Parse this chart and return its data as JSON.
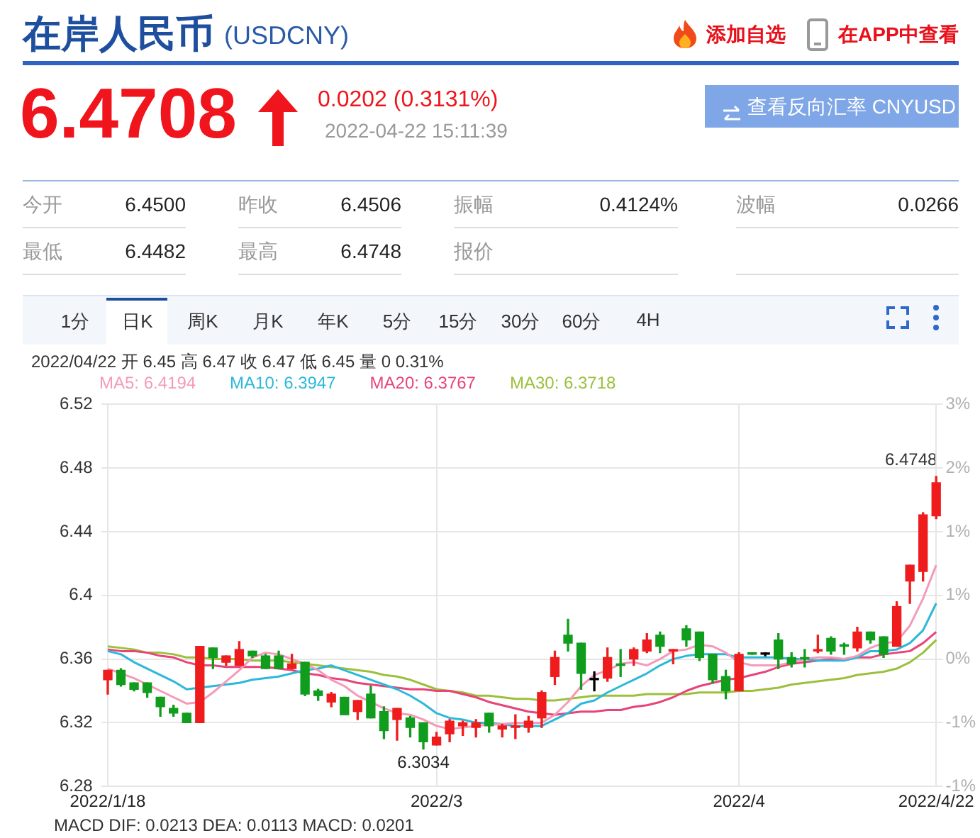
{
  "chart_data": {
    "type": "candlestick",
    "title": "在岸人民币",
    "subtitle": "(USDCNY)",
    "categories": [
      "2022/1/18",
      null,
      null,
      null,
      null,
      null,
      null,
      null,
      null,
      null,
      null,
      null,
      null,
      null,
      null,
      null,
      null,
      null,
      null,
      null,
      null,
      null,
      null,
      null,
      null,
      "2022/3",
      null,
      null,
      null,
      null,
      null,
      null,
      null,
      null,
      null,
      null,
      null,
      null,
      null,
      null,
      null,
      null,
      null,
      null,
      null,
      null,
      null,
      null,
      "2022/4",
      null,
      null,
      null,
      null,
      null,
      null,
      null,
      null,
      null,
      null,
      null,
      null,
      null,
      null,
      "2022/4/22"
    ],
    "ohlc": [
      [
        6.347,
        6.353,
        6.338,
        6.353
      ],
      [
        6.353,
        6.354,
        6.343,
        6.344
      ],
      [
        6.345,
        6.345,
        6.34,
        6.341
      ],
      [
        6.345,
        6.345,
        6.336,
        6.339
      ],
      [
        6.336,
        6.336,
        6.324,
        6.33
      ],
      [
        6.329,
        6.331,
        6.324,
        6.326
      ],
      [
        6.326,
        6.326,
        6.32,
        6.32
      ],
      [
        6.32,
        6.368,
        6.32,
        6.368
      ],
      [
        6.367,
        6.367,
        6.354,
        6.361
      ],
      [
        6.358,
        6.362,
        6.356,
        6.362
      ],
      [
        6.356,
        6.371,
        6.356,
        6.366
      ],
      [
        6.365,
        6.365,
        6.361,
        6.362
      ],
      [
        6.362,
        6.363,
        6.354,
        6.354
      ],
      [
        6.362,
        6.365,
        6.354,
        6.354
      ],
      [
        6.354,
        6.363,
        6.354,
        6.357
      ],
      [
        6.358,
        6.358,
        6.337,
        6.338
      ],
      [
        6.34,
        6.341,
        6.334,
        6.337
      ],
      [
        6.333,
        6.339,
        6.33,
        6.338
      ],
      [
        6.336,
        6.336,
        6.325,
        6.325
      ],
      [
        6.327,
        6.334,
        6.322,
        6.334
      ],
      [
        6.338,
        6.343,
        6.323,
        6.323
      ],
      [
        6.327,
        6.33,
        6.31,
        6.315
      ],
      [
        6.322,
        6.329,
        6.309,
        6.329
      ],
      [
        6.323,
        6.324,
        6.311,
        6.317
      ],
      [
        6.32,
        6.32,
        6.3034,
        6.308
      ],
      [
        6.306,
        6.314,
        6.306,
        6.311
      ],
      [
        6.313,
        6.322,
        6.308,
        6.321
      ],
      [
        6.318,
        6.321,
        6.312,
        6.32
      ],
      [
        6.317,
        6.322,
        6.311,
        6.32
      ],
      [
        6.326,
        6.326,
        6.314,
        6.318
      ],
      [
        6.316,
        6.319,
        6.311,
        6.318
      ],
      [
        6.317,
        6.325,
        6.31,
        6.318
      ],
      [
        6.317,
        6.324,
        6.314,
        6.321
      ],
      [
        6.323,
        6.34,
        6.317,
        6.339
      ],
      [
        6.349,
        6.365,
        6.344,
        6.361
      ],
      [
        6.375,
        6.385,
        6.365,
        6.37
      ],
      [
        6.37,
        6.37,
        6.341,
        6.351
      ],
      [
        6.347,
        6.352,
        6.34,
        6.347
      ],
      [
        6.348,
        6.367,
        6.346,
        6.361
      ],
      [
        6.357,
        6.366,
        6.349,
        6.356
      ],
      [
        6.36,
        6.367,
        6.356,
        6.366
      ],
      [
        6.365,
        6.376,
        6.364,
        6.372
      ],
      [
        6.375,
        6.377,
        6.364,
        6.368
      ],
      [
        6.365,
        6.366,
        6.357,
        6.366
      ],
      [
        6.379,
        6.381,
        6.368,
        6.372
      ],
      [
        6.377,
        6.377,
        6.359,
        6.361
      ],
      [
        6.363,
        6.363,
        6.345,
        6.347
      ],
      [
        6.349,
        6.353,
        6.335,
        6.34
      ],
      [
        6.34,
        6.364,
        6.34,
        6.363
      ],
      [
        6.364,
        6.364,
        6.363,
        6.363
      ],
      [
        6.363,
        6.364,
        6.362,
        6.363
      ],
      [
        6.372,
        6.376,
        6.354,
        6.36
      ],
      [
        6.361,
        6.364,
        6.355,
        6.357
      ],
      [
        6.361,
        6.366,
        6.355,
        6.36
      ],
      [
        6.365,
        6.375,
        6.364,
        6.366
      ],
      [
        6.373,
        6.374,
        6.363,
        6.365
      ],
      [
        6.369,
        6.37,
        6.363,
        6.368
      ],
      [
        6.367,
        6.38,
        6.365,
        6.377
      ],
      [
        6.377,
        6.377,
        6.37,
        6.372
      ],
      [
        6.374,
        6.374,
        6.361,
        6.363
      ],
      [
        6.368,
        6.396,
        6.368,
        6.393
      ],
      [
        6.409,
        6.419,
        6.395,
        6.419
      ],
      [
        6.415,
        6.452,
        6.409,
        6.4506
      ],
      [
        6.45,
        6.4748,
        6.4482,
        6.4708
      ]
    ],
    "colors": [
      "#ee1c1c",
      "#109c1c",
      "#109c1c",
      "#109c1c",
      "#109c1c",
      "#109c1c",
      "#109c1c",
      "#ee1c1c",
      "#109c1c",
      "#ee1c1c",
      "#ee1c1c",
      "#109c1c",
      "#109c1c",
      "#109c1c",
      "#ee1c1c",
      "#109c1c",
      "#109c1c",
      "#ee1c1c",
      "#109c1c",
      "#ee1c1c",
      "#109c1c",
      "#109c1c",
      "#ee1c1c",
      "#109c1c",
      "#109c1c",
      "#ee1c1c",
      "#ee1c1c",
      "#ee1c1c",
      "#ee1c1c",
      "#109c1c",
      "#ee1c1c",
      "#ee1c1c",
      "#ee1c1c",
      "#ee1c1c",
      "#ee1c1c",
      "#109c1c",
      "#109c1c",
      "#000000",
      "#ee1c1c",
      "#109c1c",
      "#ee1c1c",
      "#ee1c1c",
      "#109c1c",
      "#ee1c1c",
      "#109c1c",
      "#109c1c",
      "#109c1c",
      "#109c1c",
      "#ee1c1c",
      "#109c1c",
      "#000000",
      "#109c1c",
      "#109c1c",
      "#109c1c",
      "#ee1c1c",
      "#109c1c",
      "#109c1c",
      "#ee1c1c",
      "#109c1c",
      "#109c1c",
      "#ee1c1c",
      "#ee1c1c",
      "#ee1c1c",
      "#ee1c1c"
    ],
    "series": [
      {
        "name": "MA5: 6.4194",
        "type": "line",
        "color": "#f59ab8",
        "values": [
          6.354,
          6.351,
          6.348,
          6.344,
          6.34,
          6.336,
          6.332,
          6.333,
          6.339,
          6.346,
          6.353,
          6.361,
          6.364,
          6.363,
          6.36,
          6.357,
          6.353,
          6.347,
          6.343,
          6.337,
          6.333,
          6.329,
          6.326,
          6.325,
          6.322,
          6.318,
          6.316,
          6.317,
          6.318,
          6.319,
          6.319,
          6.32,
          6.32,
          6.32,
          6.325,
          6.333,
          6.343,
          6.35,
          6.353,
          6.357,
          6.358,
          6.356,
          6.36,
          6.365,
          6.366,
          6.369,
          6.368,
          6.364,
          6.358,
          6.356,
          6.356,
          6.356,
          6.358,
          6.36,
          6.361,
          6.361,
          6.36,
          6.362,
          6.367,
          6.37,
          6.371,
          6.381,
          6.398,
          6.419
        ]
      },
      {
        "name": "MA10: 6.3947",
        "type": "line",
        "color": "#2cb8da",
        "values": [
          6.365,
          6.363,
          6.358,
          6.354,
          6.35,
          6.346,
          6.341,
          6.342,
          6.343,
          6.344,
          6.345,
          6.347,
          6.348,
          6.349,
          6.351,
          6.353,
          6.354,
          6.356,
          6.353,
          6.35,
          6.347,
          6.344,
          6.341,
          6.337,
          6.332,
          6.326,
          6.323,
          6.322,
          6.32,
          6.32,
          6.319,
          6.318,
          6.318,
          6.318,
          6.322,
          6.326,
          6.332,
          6.334,
          6.339,
          6.343,
          6.347,
          6.351,
          6.356,
          6.36,
          6.362,
          6.363,
          6.363,
          6.363,
          6.361,
          6.361,
          6.361,
          6.361,
          6.36,
          6.36,
          6.359,
          6.359,
          6.359,
          6.361,
          6.365,
          6.365,
          6.366,
          6.37,
          6.378,
          6.395
        ]
      },
      {
        "name": "MA20: 6.3767",
        "type": "line",
        "color": "#e84479",
        "values": [
          6.366,
          6.365,
          6.365,
          6.364,
          6.362,
          6.361,
          6.358,
          6.356,
          6.356,
          6.355,
          6.355,
          6.355,
          6.355,
          6.354,
          6.353,
          6.351,
          6.35,
          6.348,
          6.347,
          6.345,
          6.344,
          6.343,
          6.342,
          6.341,
          6.341,
          6.34,
          6.34,
          6.338,
          6.336,
          6.333,
          6.331,
          6.329,
          6.327,
          6.326,
          6.325,
          6.326,
          6.327,
          6.327,
          6.328,
          6.328,
          6.33,
          6.331,
          6.333,
          6.336,
          6.34,
          6.343,
          6.345,
          6.347,
          6.348,
          6.35,
          6.352,
          6.355,
          6.357,
          6.358,
          6.359,
          6.36,
          6.36,
          6.361,
          6.361,
          6.363,
          6.364,
          6.365,
          6.37,
          6.377
        ]
      },
      {
        "name": "MA30: 6.3718",
        "type": "line",
        "color": "#9cc03c",
        "values": [
          6.368,
          6.367,
          6.366,
          6.364,
          6.364,
          6.363,
          6.361,
          6.361,
          6.36,
          6.36,
          6.36,
          6.359,
          6.359,
          6.359,
          6.358,
          6.357,
          6.356,
          6.355,
          6.354,
          6.353,
          6.352,
          6.35,
          6.349,
          6.347,
          6.344,
          6.341,
          6.34,
          6.339,
          6.337,
          6.337,
          6.336,
          6.335,
          6.335,
          6.334,
          6.334,
          6.335,
          6.336,
          6.337,
          6.337,
          6.337,
          6.337,
          6.338,
          6.338,
          6.338,
          6.338,
          6.339,
          6.339,
          6.339,
          6.34,
          6.34,
          6.341,
          6.342,
          6.344,
          6.345,
          6.346,
          6.347,
          6.348,
          6.35,
          6.351,
          6.352,
          6.354,
          6.358,
          6.364,
          6.372
        ]
      }
    ],
    "ylim": [
      6.28,
      6.52
    ],
    "yticks": [
      6.28,
      6.32,
      6.36,
      6.4,
      6.44,
      6.48,
      6.52
    ],
    "y2lim": [
      -1.18,
      2.6
    ],
    "y2ticks": [
      {
        "value": -1.18,
        "label": "-1%"
      },
      {
        "value": -0.55,
        "label": "-1%"
      },
      {
        "value": 0.08,
        "label": "0%"
      },
      {
        "value": 0.71,
        "label": "1%"
      },
      {
        "value": 1.34,
        "label": "1%"
      },
      {
        "value": 1.97,
        "label": "2%"
      },
      {
        "value": 2.6,
        "label": "3%"
      }
    ],
    "grid": true,
    "annotations": [
      "添加自选",
      "在APP中查看",
      "6.4708",
      "0.0202 (0.3131%)",
      "2022-04-22 15:11:39",
      "查看反向汇率 CNYUSD",
      "今开",
      "6.4500",
      "昨收",
      "6.4506",
      "振幅",
      "0.4124%",
      "波幅",
      "0.0266",
      "最低",
      "6.4482",
      "最高",
      "6.4748",
      "报价",
      "1分",
      "日K",
      "周K",
      "月K",
      "年K",
      "5分",
      "15分",
      "30分",
      "60分",
      "4H",
      "2022/04/22 开 6.45 高 6.47 收 6.47 低 6.45 量 0 0.31%",
      "MACD DIF: 0.0213 DEA: 0.0113 MACD: 0.0201",
      "6.4748",
      {
        "text": "6.3034",
        "y": 6.3034
      }
    ]
  }
}
